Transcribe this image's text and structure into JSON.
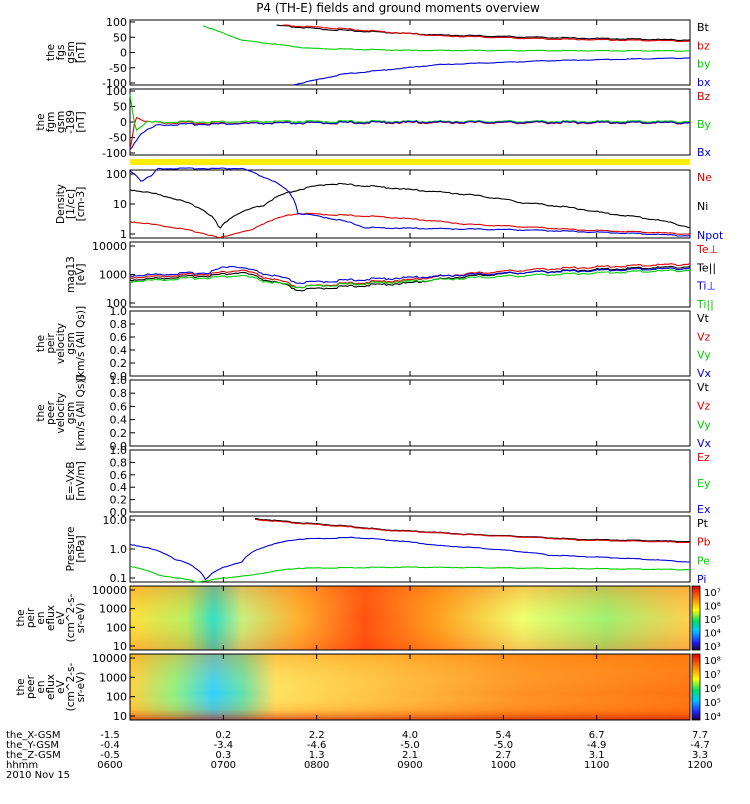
{
  "title": "P4 (TH-E) fields and ground moments overview",
  "colors": {
    "black": "#000000",
    "red": "#e00000",
    "green": "#00d000",
    "blue": "#0000d8",
    "yellow": "#ffee00"
  },
  "panels": [
    {
      "id": "fgs",
      "ylabel": [
        "the",
        "fgs",
        "gsm",
        "[nT]"
      ],
      "ticks": [
        "100",
        "50",
        "0",
        "-50",
        "-100"
      ],
      "legend": [
        {
          "t": "Bt",
          "c": "black"
        },
        {
          "t": "bz",
          "c": "red"
        },
        {
          "t": "by",
          "c": "green"
        },
        {
          "t": "bx",
          "c": "blue"
        }
      ]
    },
    {
      "id": "fgm",
      "ylabel": [
        "the",
        "fgm",
        "gsm",
        "-189",
        "[nT]"
      ],
      "ticks": [
        "100",
        "50",
        "0",
        "-50",
        "-100"
      ],
      "legend": [
        {
          "t": "Bz",
          "c": "red"
        },
        {
          "t": "By",
          "c": "green"
        },
        {
          "t": "Bx",
          "c": "blue"
        }
      ]
    },
    {
      "id": "density",
      "ylabel": [
        "Density",
        "[1/cc]",
        "[cm-3]"
      ],
      "ticks": [
        "100",
        "10",
        "1"
      ],
      "legend": [
        {
          "t": "Ne",
          "c": "red"
        },
        {
          "t": "Ni",
          "c": "black"
        },
        {
          "t": "Npot",
          "c": "blue"
        }
      ]
    },
    {
      "id": "temp",
      "ylabel": [
        "mag13",
        "[eV]"
      ],
      "ticks": [
        "10000",
        "1000",
        "100"
      ],
      "legend": [
        {
          "t": "Te⊥",
          "c": "red"
        },
        {
          "t": "Te||",
          "c": "black"
        },
        {
          "t": "Ti⊥",
          "c": "blue"
        },
        {
          "t": "Ti||",
          "c": "green"
        }
      ]
    },
    {
      "id": "peir_v",
      "ylabel": [
        "the",
        "peir",
        "velocity",
        "gsm",
        "[km/s (All Qs)]"
      ],
      "ticks": [
        "1.0",
        "0.8",
        "0.6",
        "0.4",
        "0.2",
        "0.0"
      ],
      "legend": [
        {
          "t": "Vt",
          "c": "black"
        },
        {
          "t": "Vz",
          "c": "red"
        },
        {
          "t": "Vy",
          "c": "green"
        },
        {
          "t": "Vx",
          "c": "blue"
        }
      ]
    },
    {
      "id": "peer_v",
      "ylabel": [
        "the",
        "peer",
        "velocity",
        "gsm",
        "[km/s (All Qs)]"
      ],
      "ticks": [
        "1.0",
        "0.8",
        "0.6",
        "0.4",
        "0.2",
        "0.0"
      ],
      "legend": [
        {
          "t": "Vt",
          "c": "black"
        },
        {
          "t": "Vz",
          "c": "red"
        },
        {
          "t": "Vy",
          "c": "green"
        },
        {
          "t": "Vx",
          "c": "blue"
        }
      ]
    },
    {
      "id": "efield",
      "ylabel": [
        "E=-VxB",
        "[mV/m]"
      ],
      "ticks": [
        "1.0",
        "0.8",
        "0.6",
        "0.4",
        "0.2",
        "0.0"
      ],
      "legend": [
        {
          "t": "Ez",
          "c": "red"
        },
        {
          "t": "Ey",
          "c": "green"
        },
        {
          "t": "Ex",
          "c": "blue"
        }
      ]
    },
    {
      "id": "pressure",
      "ylabel": [
        "Pressure",
        "[nPa]"
      ],
      "ticks": [
        "10.0",
        "1.0",
        "0.1"
      ],
      "legend": [
        {
          "t": "Pt",
          "c": "black"
        },
        {
          "t": "Pb",
          "c": "red"
        },
        {
          "t": "Pe",
          "c": "green"
        },
        {
          "t": "Pi",
          "c": "blue"
        }
      ]
    },
    {
      "id": "peir_spec",
      "ylabel": [
        "the",
        "peir",
        "en",
        "eflux",
        "eV",
        "(cm^2-s-",
        "sr-eV)"
      ],
      "ticks": [
        "10000",
        "1000",
        "100",
        "10"
      ],
      "colorbar": [
        "10⁷",
        "10⁶",
        "10⁵",
        "10⁴",
        "10³"
      ]
    },
    {
      "id": "peer_spec",
      "ylabel": [
        "the",
        "peer",
        "en",
        "eflux",
        "eV",
        "(cm^2-s-",
        "sr-eV)"
      ],
      "ticks": [
        "10000",
        "1000",
        "100",
        "10"
      ],
      "colorbar": [
        "10⁸",
        "10⁷",
        "10⁶",
        "10⁵",
        "10⁴"
      ]
    }
  ],
  "xaxis": {
    "rows": [
      {
        "label": "the_X-GSM",
        "vals": [
          "-1.5",
          "0.2",
          "2.2",
          "4.0",
          "5.4",
          "6.7",
          "7.7"
        ]
      },
      {
        "label": "the_Y-GSM",
        "vals": [
          "-0.4",
          "-3.4",
          "-4.6",
          "-5.0",
          "-5.0",
          "-4.9",
          "-4.7"
        ]
      },
      {
        "label": "the_Z-GSM",
        "vals": [
          "-0.5",
          "0.3",
          "1.3",
          "2.1",
          "2.7",
          "3.1",
          "3.3"
        ]
      },
      {
        "label": "hhmm",
        "vals": [
          "0600",
          "0700",
          "0800",
          "0900",
          "1000",
          "1100",
          "1200"
        ]
      }
    ],
    "date": "2010 Nov 15"
  },
  "chart_data": {
    "type": "line",
    "title": "P4 (TH-E) fields and ground moments overview",
    "x": [
      "0600",
      "0700",
      "0800",
      "0900",
      "1000",
      "1100",
      "1200"
    ],
    "series": [
      {
        "name": "Bt",
        "values": [
          null,
          null,
          100,
          85,
          65,
          55,
          45
        ]
      },
      {
        "name": "bz",
        "values": [
          null,
          null,
          95,
          80,
          60,
          50,
          42
        ]
      },
      {
        "name": "by",
        "values": [
          null,
          100,
          15,
          10,
          8,
          7,
          6
        ]
      },
      {
        "name": "bx",
        "values": [
          null,
          null,
          -100,
          -55,
          -35,
          -25,
          -20
        ]
      },
      {
        "name": "Ni",
        "values": [
          30,
          4,
          50,
          20,
          5,
          2,
          1
        ]
      },
      {
        "name": "Ne",
        "values": [
          2,
          0.5,
          4,
          2,
          1.3,
          0.9,
          0.7
        ]
      },
      {
        "name": "Pt",
        "values": [
          null,
          null,
          10,
          5,
          2.5,
          1.5,
          1.2
        ]
      },
      {
        "name": "Pi",
        "values": [
          0.9,
          0.03,
          2,
          1,
          0.4,
          0.2,
          0.15
        ]
      },
      {
        "name": "Pe",
        "values": [
          0.1,
          0.02,
          0.08,
          0.09,
          0.08,
          0.07,
          0.07
        ]
      }
    ]
  }
}
